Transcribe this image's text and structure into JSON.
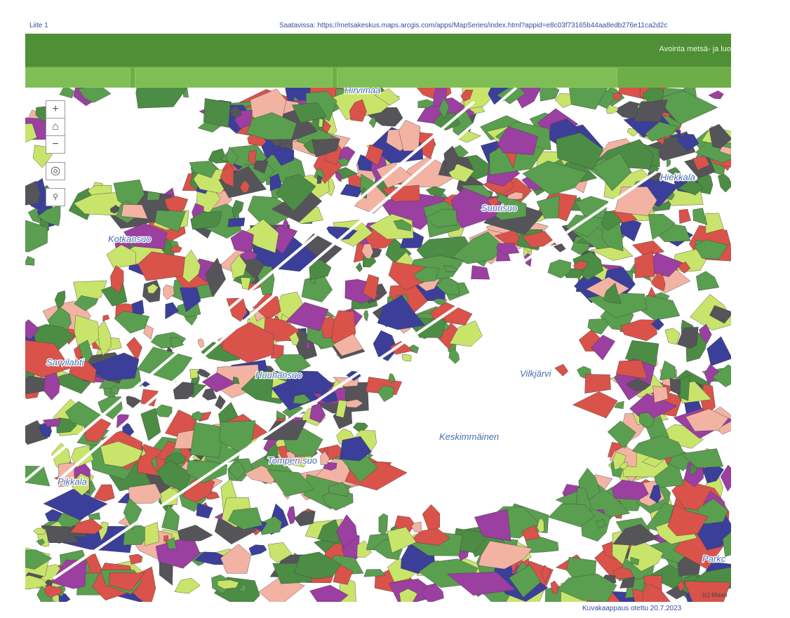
{
  "header": {
    "left": "Liite 1",
    "right": "Saatavissa: https://metsakeskus.maps.arcgis.com/apps/MapSeries/index.html?appid=e8c03f73165b44aa8edb276e11ca2d2c"
  },
  "app_title": "Avointa metsä- ja luo",
  "map": {
    "labels": [
      "Hirvimaa",
      "Suurisuo",
      "Kotkansuo",
      "Sarvilahti",
      "Huuhansuo",
      "Vilkjärvi",
      "Keskimmäinen",
      "Tompen suo",
      "Pikkala",
      "Hiekkala",
      "Parkc"
    ],
    "attribution": "(c) Maan"
  },
  "footer": "Kuvakaappaus otettu 20.7.2023"
}
